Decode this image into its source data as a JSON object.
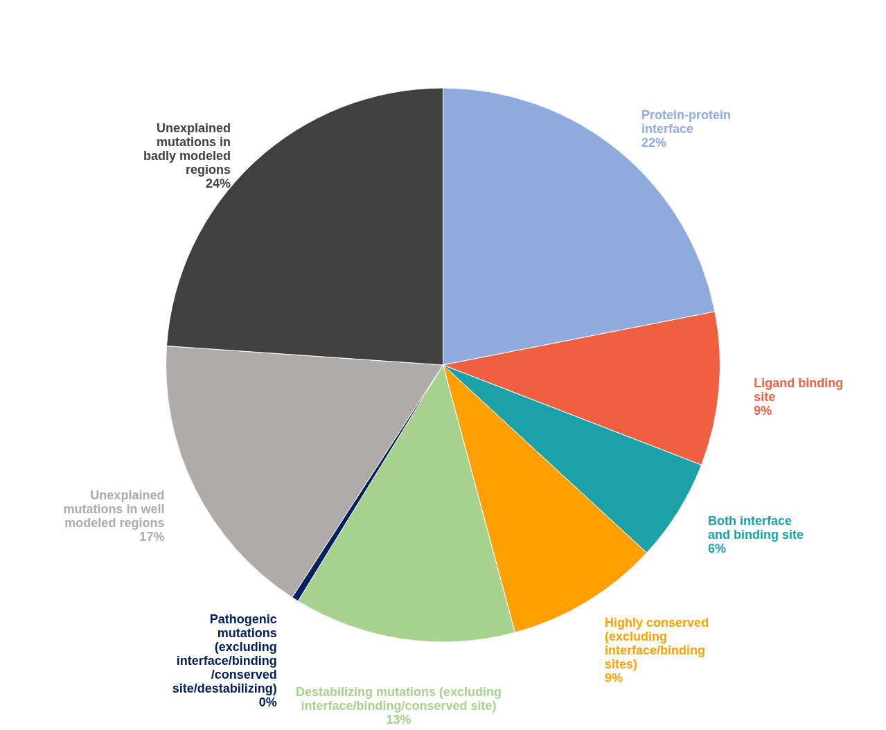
{
  "chart_data": {
    "type": "pie",
    "categories": [
      "Protein-protein interface",
      "Ligand binding site",
      "Both interface and binding site",
      "Highly conserved (excluding interface/binding sites)",
      "Destabilizing mutations (excluding interface/binding/conserved site)",
      "Pathogenic mutations (excluding interface/binding /conserved site/destabilizing)",
      "Unexplained mutations in well modeled regions",
      "Unexplained mutations in badly modeled regions"
    ],
    "values": [
      22,
      9,
      6,
      9,
      13,
      0.4,
      17,
      24
    ],
    "value_labels": [
      "22%",
      "9%",
      "6%",
      "9%",
      "13%",
      "0%",
      "17%",
      "24%"
    ],
    "colors": [
      "#8faadc",
      "#f05f40",
      "#1ba1a8",
      "#ffa000",
      "#a9d18e",
      "#002060",
      "#aeaba8",
      "#404040"
    ]
  }
}
